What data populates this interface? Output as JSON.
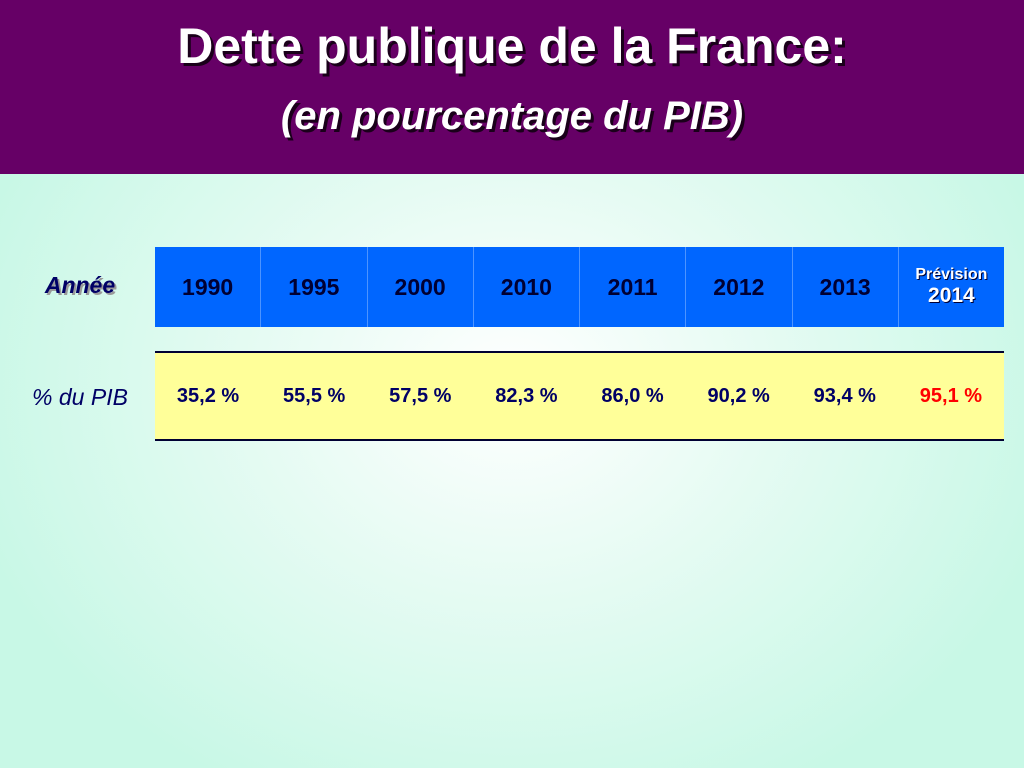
{
  "slide": {
    "title": "Dette publique de la France:",
    "subtitle": "(en pourcentage du PIB)"
  },
  "colors": {
    "header_bg": "#660066",
    "year_row_bg": "#0066ff",
    "value_row_bg": "#ffff99",
    "value_text": "#000066",
    "highlight_text": "#ff0000",
    "background": "#c8f8e6"
  },
  "chart_data": {
    "type": "table",
    "title": "Dette publique de la France:",
    "subtitle": "(en pourcentage du PIB)",
    "row_headers": [
      "Année",
      "% du PIB"
    ],
    "columns": [
      {
        "label": "1990",
        "value": "35,2 %"
      },
      {
        "label": "1995",
        "value": "55,5 %"
      },
      {
        "label": "2000",
        "value": "57,5 %"
      },
      {
        "label": "2010",
        "value": "82,3 %"
      },
      {
        "label": "2011",
        "value": "86,0 %"
      },
      {
        "label": "2012",
        "value": "90,2 %"
      },
      {
        "label": "2013",
        "value": "93,4 %"
      },
      {
        "label": "2014",
        "prefix": "Prévision",
        "value": "95,1 %",
        "highlight": true
      }
    ],
    "x": [
      1990,
      1995,
      2000,
      2010,
      2011,
      2012,
      2013,
      2014
    ],
    "values": [
      35.2,
      55.5,
      57.5,
      82.3,
      86.0,
      90.2,
      93.4,
      95.1
    ]
  }
}
